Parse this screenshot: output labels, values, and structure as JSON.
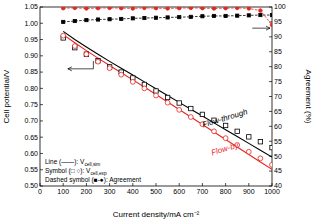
{
  "chart_data": {
    "type": "line",
    "xlabel": "Current density/mA cm⁻²",
    "ylabel": "Cell potential/V",
    "y2label": "Agreement (%)",
    "xlim": [
      0,
      1000
    ],
    "xticks": [
      0,
      100,
      200,
      300,
      400,
      500,
      600,
      700,
      800,
      900,
      1000
    ],
    "ylim": [
      0.5,
      1.05
    ],
    "yticks": [
      {
        "value": 0.5,
        "label": "0.50"
      },
      0.55,
      {
        "value": 0.6,
        "label": "0.60"
      },
      0.65,
      {
        "value": 0.7,
        "label": "0.70"
      },
      0.75,
      {
        "value": 0.8,
        "label": "0.80"
      },
      0.85,
      {
        "value": 0.9,
        "label": "0.90"
      },
      0.95,
      {
        "value": 1.0,
        "label": "1.00"
      },
      1.05
    ],
    "y2lim": [
      40,
      100
    ],
    "y2ticks": [
      40,
      45,
      50,
      55,
      60,
      65,
      70,
      75,
      80,
      85,
      90,
      95,
      100
    ],
    "grid": false,
    "legend": "lower left",
    "legend_entries": [
      {
        "text": "Line (——): V",
        "sub": "cell,sim"
      },
      {
        "text": "Symbol (□ ○): V",
        "sub": "cell,exp"
      },
      {
        "text": "Dashed symbol (■-●): Agreement"
      }
    ],
    "x": [
      100,
      150,
      200,
      250,
      300,
      350,
      400,
      450,
      500,
      550,
      600,
      650,
      700,
      750,
      800,
      850,
      900,
      950,
      1000
    ],
    "series": [
      {
        "name": "Flow-through",
        "type": "line",
        "color": "#000000",
        "line_style": "solid",
        "values": [
          0.975,
          0.95,
          0.927,
          0.905,
          0.883,
          0.862,
          0.841,
          0.82,
          0.799,
          0.778,
          0.757,
          0.736,
          0.715,
          0.694,
          0.673,
          0.652,
          0.631,
          0.61,
          0.589
        ]
      },
      {
        "name": "Flow-by",
        "type": "line",
        "color": "#e8251f",
        "line_style": "solid",
        "values": [
          0.965,
          0.94,
          0.916,
          0.893,
          0.87,
          0.848,
          0.826,
          0.804,
          0.781,
          0.758,
          0.735,
          0.712,
          0.689,
          0.666,
          0.643,
          0.62,
          0.597,
          0.574,
          0.551
        ]
      },
      {
        "type": "scatter",
        "color": "#000000",
        "marker": "square-open",
        "values": [
          0.955,
          0.925,
          0.905,
          0.885,
          0.866,
          0.85,
          0.832,
          0.812,
          0.792,
          0.772,
          0.755,
          0.738,
          0.72,
          0.702,
          0.686,
          0.668,
          0.651,
          0.636,
          0.618
        ]
      },
      {
        "type": "scatter",
        "color": "#e8251f",
        "marker": "circle-open",
        "values": [
          0.962,
          0.93,
          0.905,
          0.882,
          0.862,
          0.842,
          0.82,
          0.8,
          0.778,
          0.756,
          0.734,
          0.712,
          0.69,
          0.668,
          0.647,
          0.626,
          0.605,
          0.585,
          0.565
        ]
      },
      {
        "type": "line",
        "color": "#000000",
        "line_style": "dashed",
        "marker": "square",
        "axis": "y2",
        "values": [
          95.0,
          95.3,
          95.6,
          95.8,
          95.9,
          96.0,
          96.2,
          96.3,
          96.4,
          96.5,
          96.6,
          96.7,
          96.9,
          97.0,
          97.0,
          97.1,
          97.2,
          97.3,
          97.3
        ]
      },
      {
        "type": "line",
        "color": "#e8251f",
        "line_style": "dashed",
        "marker": "circle",
        "axis": "y2",
        "values": [
          99.6,
          99.7,
          99.5,
          99.6,
          99.7,
          99.6,
          99.5,
          99.7,
          99.6,
          99.5,
          99.6,
          99.7,
          99.6,
          99.5,
          99.6,
          99.7,
          99.5,
          98.8,
          94.0
        ]
      }
    ]
  }
}
